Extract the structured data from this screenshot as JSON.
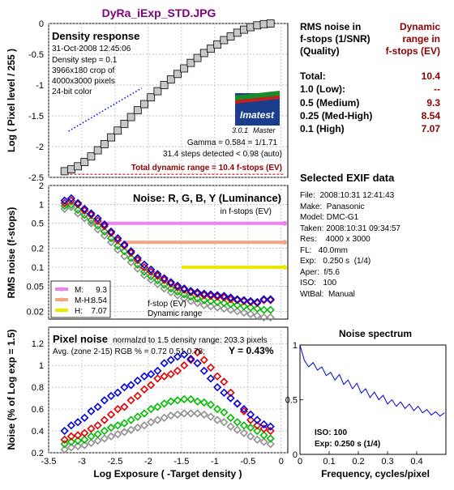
{
  "page_title": "DyRa_iExp_STD.JPG",
  "x_axis_label": "Log Exposure ( -Target density )",
  "density_panel": {
    "title": "Density response",
    "date": "31-Oct-2008 12:45:06",
    "step": "Density step = 0.1",
    "crop1": "3966x180 crop of",
    "crop2": "4000x3000 pixels",
    "color": "24-bit color",
    "ylabel": "Log ( Pixel level / 255 )",
    "yticks": [
      "0",
      "-0.5",
      "-1",
      "-1.5",
      "-2",
      "-2.5"
    ],
    "gamma": "Gamma = 0.584 = 1/1.71",
    "steps_detected": "31.4 steps detected < 0.98 (auto)",
    "total_dr": "Total dynamic range = 10.4 f-stops (EV)",
    "logo_text": "Imatest",
    "logo_version": "3.0.1",
    "logo_edition": "Master"
  },
  "noise_panel": {
    "title": "Noise: R, G, B, Y (Luminance)",
    "subtitle": "in f-stops (EV)",
    "ylabel": "RMS noise (f-stops)",
    "yticks": [
      "2",
      "1",
      "0.5",
      "0.2",
      "0.1",
      "0.05",
      "0.02"
    ],
    "legend": [
      {
        "label": "M:",
        "value": "9.3",
        "color": "#ee82ee"
      },
      {
        "label": "M-H:",
        "value": "8.54",
        "color": "#f4a582"
      },
      {
        "label": "H:",
        "value": "7.07",
        "color": "#e8e800"
      }
    ],
    "note1": "f-stop (EV)",
    "note2": "Dynamic range"
  },
  "pixel_panel": {
    "title": "Pixel noise",
    "norm": "normalzd to 1.5 density range: 203.3 pixels",
    "avg": "Avg. (zone 2-15) RGB % = 0.72  0.51  0.78;",
    "y_pct": "Y = 0.43%",
    "ylabel": "Noise (% of Log exp = 1.5)",
    "yticks": [
      "1.2",
      "1",
      "0.8",
      "0.6",
      "0.4",
      "0.2"
    ],
    "xticks": [
      "-3.5",
      "-3",
      "-2.5",
      "-2",
      "-1.5",
      "-1",
      "-0.5",
      "0"
    ]
  },
  "rms_table": {
    "h1": "RMS noise in",
    "h2": "f-stops (1/SNR)",
    "h3": "(Quality)",
    "d1": "Dynamic",
    "d2": "range in",
    "d3": "f-stops (EV)",
    "rows": [
      {
        "label": "Total:",
        "value": "10.4"
      },
      {
        "label": "1.0    (Low):",
        "value": "--"
      },
      {
        "label": "0.5    (Medium)",
        "value": "9.3"
      },
      {
        "label": "0.25  (Med-High)",
        "value": "8.54"
      },
      {
        "label": "0.1    (High)",
        "value": "7.07"
      }
    ]
  },
  "exif": {
    "title": "Selected EXIF data",
    "rows": [
      "File:  2008:10:31 12:41:43",
      "Make:  Panasonic",
      "Model: DMC-G1",
      "Taken: 2008:10:31 09:34:57",
      "Res:    4000 x 3000",
      "FL:   40.0mm",
      "Exp:   0.250 s  (1/4)",
      "Aper:  f/5.6",
      "ISO:   100",
      "WtBal:  Manual"
    ]
  },
  "spectrum": {
    "title": "Noise spectrum",
    "xlabel": "Frequency, cycles/pixel",
    "yticks": [
      "1",
      "0.5",
      "0"
    ],
    "xticks": [
      "0",
      "0.1",
      "0.2",
      "0.3",
      "0.4"
    ],
    "iso": "ISO:   100",
    "exp": "Exp:  0.250 s   (1/4)"
  },
  "colors": {
    "title": "#800080",
    "red": "#e00000",
    "green": "#00bb00",
    "blue": "#0000dd",
    "gray": "#909090",
    "dark_red": "#8b0000"
  },
  "chart_data": [
    {
      "type": "line",
      "title": "Density response",
      "xlabel": "Log Exposure ( -Target density )",
      "ylabel": "Log ( Pixel level / 255 )",
      "xlim": [
        -3.5,
        0.1
      ],
      "ylim": [
        -2.5,
        0
      ],
      "series": [
        {
          "values": [
            [
              -3.26,
              -2.4
            ],
            [
              -3.16,
              -2.37
            ],
            [
              -3.06,
              -2.32
            ],
            [
              -2.96,
              -2.25
            ],
            [
              -2.86,
              -2.16
            ],
            [
              -2.76,
              -2.06
            ],
            [
              -2.66,
              -1.96
            ],
            [
              -2.56,
              -1.85
            ],
            [
              -2.46,
              -1.74
            ],
            [
              -2.36,
              -1.63
            ],
            [
              -2.26,
              -1.52
            ],
            [
              -2.16,
              -1.41
            ],
            [
              -2.06,
              -1.31
            ],
            [
              -1.96,
              -1.2
            ],
            [
              -1.86,
              -1.1
            ],
            [
              -1.76,
              -1.0
            ],
            [
              -1.66,
              -0.91
            ],
            [
              -1.56,
              -0.82
            ],
            [
              -1.46,
              -0.73
            ],
            [
              -1.36,
              -0.64
            ],
            [
              -1.26,
              -0.56
            ],
            [
              -1.16,
              -0.48
            ],
            [
              -1.06,
              -0.41
            ],
            [
              -0.96,
              -0.34
            ],
            [
              -0.86,
              -0.27
            ],
            [
              -0.76,
              -0.21
            ],
            [
              -0.66,
              -0.15
            ],
            [
              -0.56,
              -0.1
            ],
            [
              -0.46,
              -0.06
            ],
            [
              -0.36,
              -0.03
            ],
            [
              -0.26,
              -0.01
            ],
            [
              -0.16,
              0.0
            ]
          ]
        }
      ]
    },
    {
      "type": "scatter",
      "title": "Noise: R, G, B, Y (Luminance)",
      "ylabel": "RMS noise (f-stops)",
      "yscale": "log",
      "ylim": [
        0.015,
        2
      ],
      "xlim": [
        -3.5,
        0.1
      ],
      "x": [
        -3.26,
        -3.16,
        -3.06,
        -2.96,
        -2.86,
        -2.76,
        -2.66,
        -2.56,
        -2.46,
        -2.36,
        -2.26,
        -2.16,
        -2.06,
        -1.96,
        -1.86,
        -1.76,
        -1.66,
        -1.56,
        -1.46,
        -1.36,
        -1.26,
        -1.16,
        -1.06,
        -0.96,
        -0.86,
        -0.76,
        -0.66,
        -0.56,
        -0.46,
        -0.36,
        -0.26,
        -0.16
      ],
      "series": [
        {
          "name": "R",
          "color": "#e00000",
          "values": [
            1.05,
            1.15,
            1.0,
            0.8,
            0.68,
            0.55,
            0.45,
            0.35,
            0.27,
            0.22,
            0.17,
            0.13,
            0.1,
            0.085,
            0.073,
            0.063,
            0.055,
            0.048,
            0.044,
            0.04,
            0.038,
            0.036,
            0.035,
            0.034,
            0.033,
            0.031,
            0.03,
            0.029,
            0.028,
            0.027,
            0.03,
            0.03
          ]
        },
        {
          "name": "G",
          "color": "#00bb00",
          "values": [
            0.95,
            0.98,
            0.82,
            0.68,
            0.56,
            0.46,
            0.37,
            0.29,
            0.22,
            0.18,
            0.14,
            0.11,
            0.085,
            0.072,
            0.062,
            0.053,
            0.046,
            0.041,
            0.037,
            0.034,
            0.032,
            0.03,
            0.029,
            0.028,
            0.027,
            0.026,
            0.025,
            0.024,
            0.023,
            0.022,
            0.021,
            0.021
          ]
        },
        {
          "name": "B",
          "color": "#0000dd",
          "values": [
            1.15,
            1.25,
            1.05,
            0.85,
            0.72,
            0.6,
            0.48,
            0.37,
            0.29,
            0.23,
            0.18,
            0.14,
            0.11,
            0.092,
            0.078,
            0.067,
            0.058,
            0.051,
            0.046,
            0.042,
            0.04,
            0.038,
            0.037,
            0.036,
            0.035,
            0.033,
            0.031,
            0.03,
            0.029,
            0.028,
            0.031,
            0.031
          ]
        },
        {
          "name": "Y",
          "color": "#909090",
          "values": [
            0.85,
            0.9,
            0.72,
            0.6,
            0.5,
            0.4,
            0.32,
            0.25,
            0.19,
            0.15,
            0.12,
            0.095,
            0.075,
            0.063,
            0.054,
            0.046,
            0.04,
            0.036,
            0.032,
            0.029,
            0.027,
            0.025,
            0.024,
            0.023,
            0.022,
            0.021,
            0.02,
            0.019,
            0.018,
            0.017,
            0.016,
            0.016
          ]
        }
      ],
      "thresholds": [
        {
          "label": "M",
          "value": 0.5,
          "color": "#ee82ee"
        },
        {
          "label": "M-H",
          "value": 0.25,
          "color": "#f4a582"
        },
        {
          "label": "H",
          "value": 0.1,
          "color": "#e8e800"
        }
      ]
    },
    {
      "type": "scatter",
      "title": "Pixel noise",
      "xlabel": "Log Exposure ( -Target density )",
      "ylabel": "Noise (% of Log exp = 1.5)",
      "xlim": [
        -3.5,
        0.1
      ],
      "ylim": [
        0.2,
        1.35
      ],
      "x": [
        -3.26,
        -3.16,
        -3.06,
        -2.96,
        -2.86,
        -2.76,
        -2.66,
        -2.56,
        -2.46,
        -2.36,
        -2.26,
        -2.16,
        -2.06,
        -1.96,
        -1.86,
        -1.76,
        -1.66,
        -1.56,
        -1.46,
        -1.36,
        -1.26,
        -1.16,
        -1.06,
        -0.96,
        -0.86,
        -0.76,
        -0.66,
        -0.56,
        -0.46,
        -0.36,
        -0.26,
        -0.16
      ],
      "series": [
        {
          "name": "R",
          "color": "#e00000",
          "values": [
            0.32,
            0.35,
            0.36,
            0.38,
            0.42,
            0.45,
            0.5,
            0.55,
            0.6,
            0.62,
            0.68,
            0.72,
            0.78,
            0.82,
            0.88,
            0.9,
            0.92,
            0.95,
            1.0,
            1.05,
            1.12,
            1.05,
            0.98,
            0.9,
            0.85,
            0.75,
            0.65,
            0.58,
            0.5,
            0.45,
            0.42,
            0.4
          ]
        },
        {
          "name": "G",
          "color": "#00bb00",
          "values": [
            0.28,
            0.3,
            0.31,
            0.32,
            0.35,
            0.37,
            0.4,
            0.43,
            0.45,
            0.47,
            0.5,
            0.53,
            0.56,
            0.6,
            0.62,
            0.65,
            0.67,
            0.68,
            0.69,
            0.69,
            0.67,
            0.66,
            0.64,
            0.6,
            0.57,
            0.52,
            0.48,
            0.45,
            0.43,
            0.4,
            0.36,
            0.33
          ]
        },
        {
          "name": "B",
          "color": "#0000dd",
          "values": [
            0.4,
            0.45,
            0.48,
            0.52,
            0.58,
            0.62,
            0.68,
            0.72,
            0.75,
            0.8,
            0.82,
            0.86,
            0.9,
            0.92,
            0.95,
            1.02,
            1.05,
            1.08,
            1.1,
            1.06,
            1.02,
            0.95,
            0.88,
            0.8,
            0.75,
            0.7,
            0.65,
            0.6,
            0.55,
            0.5,
            0.46,
            0.44
          ]
        },
        {
          "name": "Y",
          "color": "#909090",
          "values": [
            0.23,
            0.25,
            0.26,
            0.27,
            0.29,
            0.31,
            0.33,
            0.35,
            0.37,
            0.39,
            0.41,
            0.43,
            0.45,
            0.48,
            0.5,
            0.52,
            0.54,
            0.55,
            0.56,
            0.56,
            0.56,
            0.55,
            0.53,
            0.5,
            0.48,
            0.44,
            0.41,
            0.38,
            0.35,
            0.32,
            0.3,
            0.28
          ]
        }
      ]
    },
    {
      "type": "line",
      "title": "Noise spectrum",
      "xlabel": "Frequency, cycles/pixel",
      "xlim": [
        0,
        0.5
      ],
      "ylim": [
        0,
        1
      ],
      "series": [
        {
          "color": "#0000cc",
          "values": [
            [
              0.0,
              1.0
            ],
            [
              0.015,
              0.86
            ],
            [
              0.03,
              0.8
            ],
            [
              0.045,
              0.84
            ],
            [
              0.06,
              0.77
            ],
            [
              0.075,
              0.8
            ],
            [
              0.09,
              0.72
            ],
            [
              0.105,
              0.75
            ],
            [
              0.12,
              0.68
            ],
            [
              0.135,
              0.73
            ],
            [
              0.15,
              0.64
            ],
            [
              0.165,
              0.68
            ],
            [
              0.18,
              0.6
            ],
            [
              0.195,
              0.65
            ],
            [
              0.21,
              0.56
            ],
            [
              0.225,
              0.6
            ],
            [
              0.24,
              0.52
            ],
            [
              0.255,
              0.57
            ],
            [
              0.27,
              0.5
            ],
            [
              0.285,
              0.54
            ],
            [
              0.3,
              0.46
            ],
            [
              0.315,
              0.5
            ],
            [
              0.33,
              0.44
            ],
            [
              0.345,
              0.48
            ],
            [
              0.36,
              0.42
            ],
            [
              0.375,
              0.46
            ],
            [
              0.39,
              0.4
            ],
            [
              0.405,
              0.44
            ],
            [
              0.42,
              0.38
            ],
            [
              0.435,
              0.41
            ],
            [
              0.45,
              0.36
            ],
            [
              0.465,
              0.39
            ],
            [
              0.48,
              0.35
            ],
            [
              0.495,
              0.38
            ]
          ]
        }
      ]
    }
  ]
}
